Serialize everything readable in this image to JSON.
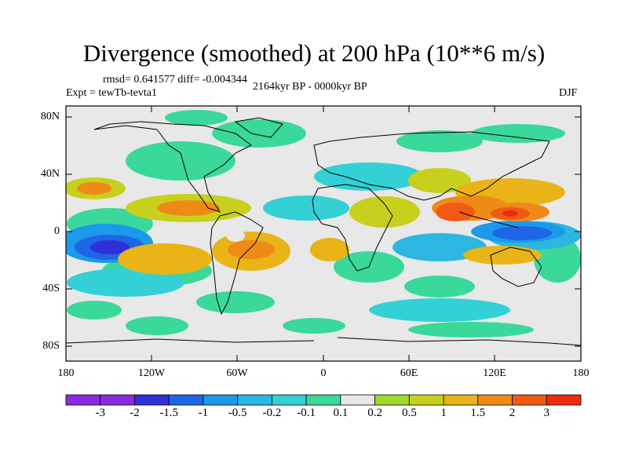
{
  "title": "Divergence (smoothed) at 200 hPa (10**6 m/s)",
  "stats": "rmsd= 0.641577 diff= -0.004344",
  "expt": "Expt = tewTb-tevta1",
  "period": "2164kyr BP - 0000kyr BP",
  "season": "DJF",
  "lat_labels": [
    "80N",
    "40N",
    "0",
    "40S",
    "80S"
  ],
  "lon_labels": [
    "180",
    "120W",
    "60W",
    "0",
    "60E",
    "120E",
    "180"
  ],
  "colorbar": {
    "labels": [
      "-3",
      "-2",
      "-1.5",
      "-1",
      "-0.5",
      "-0.2",
      "-0.1",
      "0.1",
      "0.2",
      "0.5",
      "1",
      "1.5",
      "2",
      "3"
    ],
    "colors": [
      "#8a2be2",
      "#3030d8",
      "#1e66e6",
      "#1a9ae8",
      "#2cb6e0",
      "#33d0d6",
      "#3ad89a",
      "#e8e8e8",
      "#9ed82a",
      "#c8d01e",
      "#e8b418",
      "#f08a16",
      "#f05a14",
      "#ee2a12"
    ]
  }
}
